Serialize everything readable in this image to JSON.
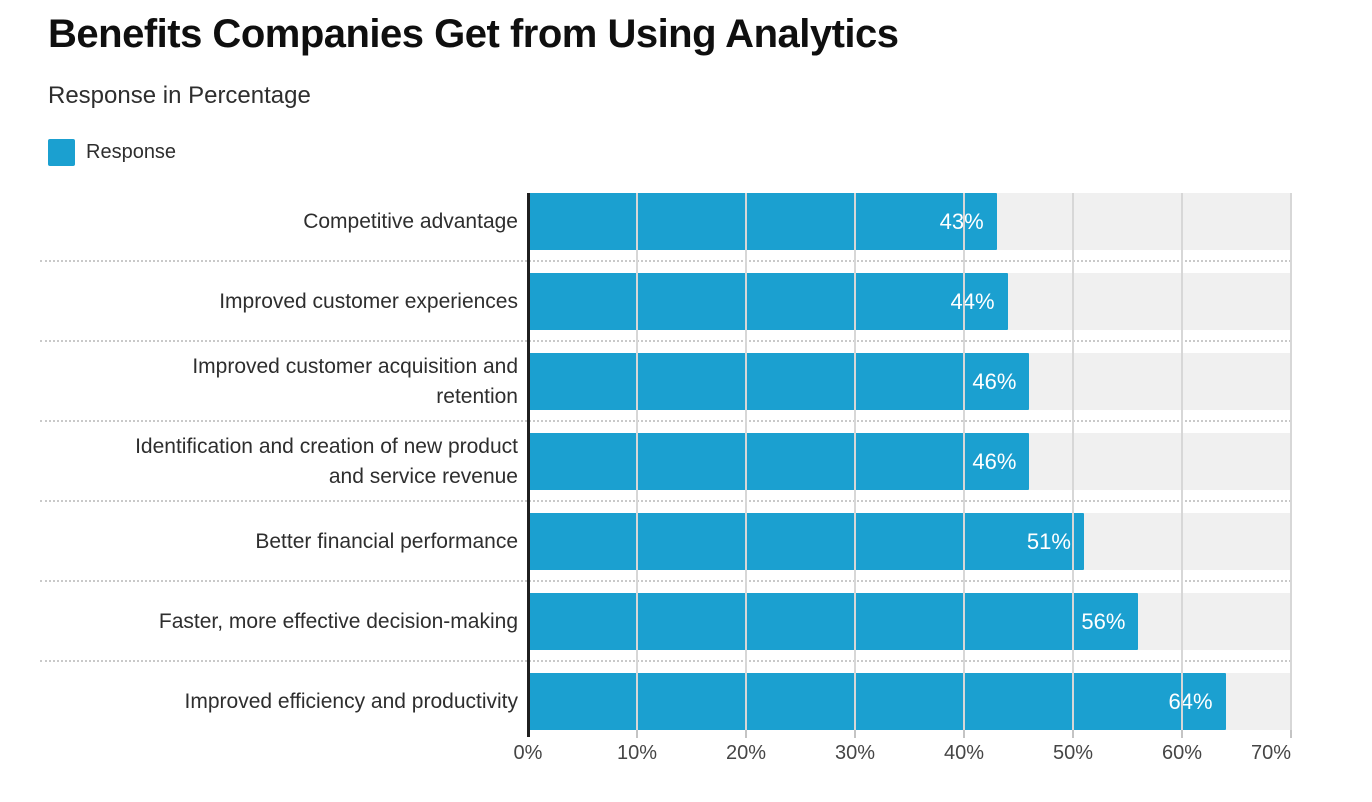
{
  "chart_data": {
    "type": "bar",
    "orientation": "horizontal",
    "title": "Benefits Companies Get from Using Analytics",
    "subtitle": "Response in Percentage",
    "legend_label": "Response",
    "legend_position": "top-left",
    "categories": [
      "Competitive advantage",
      "Improved customer experiences",
      "Improved customer acquisition and retention",
      "Identification and creation of new product and service revenue",
      "Better financial performance",
      "Faster, more effective decision-making",
      "Improved efficiency and productivity"
    ],
    "category_lines": [
      [
        "Competitive advantage"
      ],
      [
        "Improved customer experiences"
      ],
      [
        "Improved customer acquisition and",
        "retention"
      ],
      [
        "Identification and creation of new product",
        "and service revenue"
      ],
      [
        "Better financial performance"
      ],
      [
        "Faster, more effective decision-making"
      ],
      [
        "Improved efficiency and productivity"
      ]
    ],
    "values": [
      43,
      44,
      46,
      46,
      51,
      56,
      64
    ],
    "value_labels": [
      "43%",
      "44%",
      "46%",
      "46%",
      "51%",
      "56%",
      "64%"
    ],
    "xlabel": "",
    "ylabel": "",
    "xlim": [
      0,
      70
    ],
    "x_ticks": [
      "0%",
      "10%",
      "20%",
      "30%",
      "40%",
      "50%",
      "60%",
      "70%"
    ],
    "grid": "vertical solid gridlines every 10%, dotted horizontal row separators",
    "colors": {
      "bar": "#1BA0D0",
      "track": "#F0F0F0",
      "gridline": "#D7D7D7",
      "separator": "#C9C9C9",
      "axis": "#1F1F1F",
      "value_label": "#FFFFFF"
    }
  }
}
